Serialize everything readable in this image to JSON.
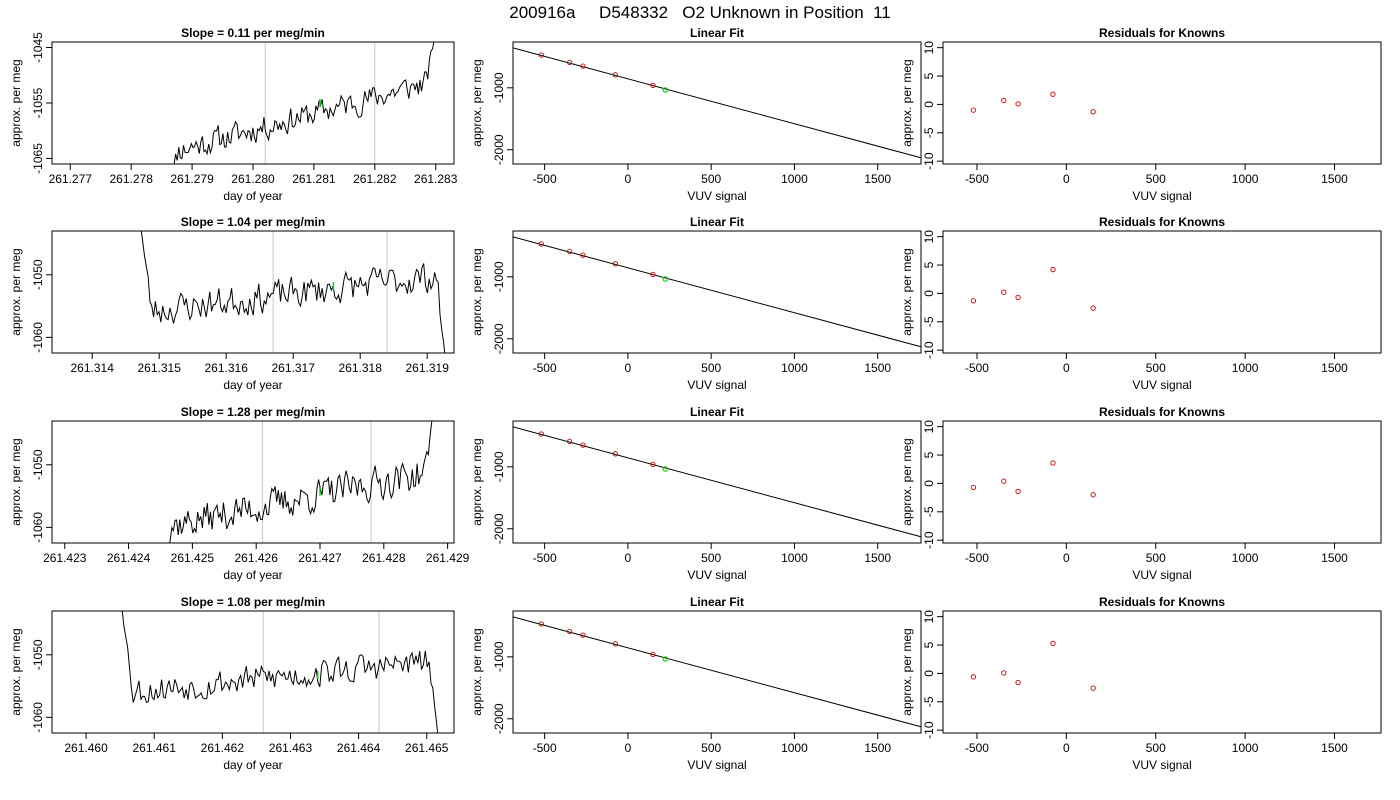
{
  "title": "200916a     D548332   O2 Unknown in Position  11",
  "colors": {
    "trace": "#000000",
    "marker": "#00dd00",
    "known_points": "#cc0000",
    "guides": "#c8c8c8",
    "fit_line": "#000000"
  },
  "chart_data": [
    {
      "type": "line",
      "title": "Slope =  0.11  per meg/min",
      "xlabel": "day of year",
      "ylabel": "approx. per meg",
      "xlim": [
        261.2767,
        261.2833
      ],
      "ylim": [
        -1066,
        -1044
      ],
      "xticks": [
        261.277,
        261.278,
        261.279,
        261.28,
        261.281,
        261.282,
        261.283
      ],
      "xtick_labels": [
        "261.277",
        "261.278",
        "261.279",
        "261.280",
        "261.281",
        "261.282",
        "261.283"
      ],
      "yticks": [
        -1045,
        -1055,
        -1065
      ],
      "ytick_labels": [
        "-1045",
        "-1055",
        "-1065"
      ],
      "vlines": [
        261.2802,
        261.282
      ],
      "marker": {
        "x": 261.2811,
        "y": -1055
      },
      "trace": {
        "start": 261.2786,
        "end": 261.283,
        "base_start": -1064,
        "base_end": -1051,
        "noise": 1.5,
        "spike_start": -1070,
        "spike_end": -1042,
        "seed": 11
      }
    },
    {
      "type": "scatter",
      "title": "Linear Fit",
      "xlabel": "VUV signal",
      "ylabel": "approx. per meg",
      "xlim": [
        -690,
        1760
      ],
      "ylim": [
        -2230,
        -260
      ],
      "xticks": [
        -500,
        0,
        500,
        1000,
        1500
      ],
      "xtick_labels": [
        "-500",
        "0",
        "500",
        "1000",
        "1500"
      ],
      "yticks": [
        -1000,
        -2000
      ],
      "ytick_labels": [
        "-1000",
        "-2000"
      ],
      "fit_line": {
        "x": [
          -690,
          1760
        ],
        "y": [
          -355,
          -2130
        ]
      },
      "knowns": {
        "x": [
          -520,
          -350,
          -270,
          -75,
          150
        ],
        "y": [
          -470,
          -590,
          -650,
          -790,
          -960
        ]
      },
      "unknown": {
        "x": 225,
        "y": -1035
      }
    },
    {
      "type": "scatter",
      "title": "Residuals for Knowns",
      "xlabel": "VUV signal",
      "ylabel": "approx. per meg",
      "xlim": [
        -690,
        1760
      ],
      "ylim": [
        -10.5,
        11
      ],
      "xticks": [
        -500,
        0,
        500,
        1000,
        1500
      ],
      "xtick_labels": [
        "-500",
        "0",
        "500",
        "1000",
        "1500"
      ],
      "yticks": [
        10,
        5,
        0,
        -5,
        -10
      ],
      "ytick_labels": [
        "10",
        "5",
        "0",
        "-5",
        "-10"
      ],
      "residuals": {
        "x": [
          -520,
          -350,
          -270,
          -75,
          150
        ],
        "y": [
          -1.0,
          0.7,
          0.1,
          1.8,
          -1.3
        ]
      }
    },
    {
      "type": "line",
      "title": "Slope =  1.04  per meg/min",
      "xlabel": "day of year",
      "ylabel": "approx. per meg",
      "xlim": [
        261.3134,
        261.3194
      ],
      "ylim": [
        -1062.5,
        -1043
      ],
      "xticks": [
        261.314,
        261.315,
        261.316,
        261.317,
        261.318,
        261.319
      ],
      "xtick_labels": [
        "261.314",
        "261.315",
        "261.316",
        "261.317",
        "261.318",
        "261.319"
      ],
      "yticks": [
        -1050,
        -1060
      ],
      "ytick_labels": [
        "-1050",
        "-1060"
      ],
      "vlines": [
        261.3167,
        261.3184
      ],
      "marker": {
        "x": 261.3176,
        "y": -1051.8
      },
      "trace": {
        "start": 261.3147,
        "end": 261.3193,
        "base_start": -1056,
        "base_end": -1050,
        "noise": 1.6,
        "spike_start": -1040,
        "spike_end": -1067,
        "seed": 23
      }
    },
    {
      "type": "scatter",
      "title": "Linear Fit",
      "xlabel": "VUV signal",
      "ylabel": "approx. per meg",
      "xlim": [
        -690,
        1760
      ],
      "ylim": [
        -2230,
        -260
      ],
      "xticks": [
        -500,
        0,
        500,
        1000,
        1500
      ],
      "xtick_labels": [
        "-500",
        "0",
        "500",
        "1000",
        "1500"
      ],
      "yticks": [
        -1000,
        -2000
      ],
      "ytick_labels": [
        "-1000",
        "-2000"
      ],
      "fit_line": {
        "x": [
          -690,
          1760
        ],
        "y": [
          -355,
          -2130
        ]
      },
      "knowns": {
        "x": [
          -520,
          -350,
          -270,
          -75,
          150
        ],
        "y": [
          -470,
          -590,
          -650,
          -790,
          -960
        ]
      },
      "unknown": {
        "x": 225,
        "y": -1035
      }
    },
    {
      "type": "scatter",
      "title": "Residuals for Knowns",
      "xlabel": "VUV signal",
      "ylabel": "approx. per meg",
      "xlim": [
        -690,
        1760
      ],
      "ylim": [
        -10.5,
        11
      ],
      "xticks": [
        -500,
        0,
        500,
        1000,
        1500
      ],
      "xtick_labels": [
        "-500",
        "0",
        "500",
        "1000",
        "1500"
      ],
      "yticks": [
        10,
        5,
        0,
        -5,
        -10
      ],
      "ytick_labels": [
        "10",
        "5",
        "0",
        "-5",
        "-10"
      ],
      "residuals": {
        "x": [
          -520,
          -350,
          -270,
          -75,
          150
        ],
        "y": [
          -1.3,
          0.2,
          -0.7,
          4.2,
          -2.6
        ]
      }
    },
    {
      "type": "line",
      "title": "Slope =  1.28  per meg/min",
      "xlabel": "day of year",
      "ylabel": "approx. per meg",
      "xlim": [
        261.4228,
        261.4291
      ],
      "ylim": [
        -1062.5,
        -1043
      ],
      "xticks": [
        261.423,
        261.424,
        261.425,
        261.426,
        261.427,
        261.428,
        261.429
      ],
      "xtick_labels": [
        "261.423",
        "261.424",
        "261.425",
        "261.426",
        "261.427",
        "261.428",
        "261.429"
      ],
      "yticks": [
        -1050,
        -1060
      ],
      "ytick_labels": [
        "-1050",
        "-1060"
      ],
      "vlines": [
        261.4261,
        261.4278
      ],
      "marker": {
        "x": 261.427,
        "y": -1054.3
      },
      "trace": {
        "start": 261.4245,
        "end": 261.4288,
        "base_start": -1060,
        "base_end": -1051,
        "noise": 1.7,
        "spike_start": -1067,
        "spike_end": -1040,
        "seed": 37
      }
    },
    {
      "type": "scatter",
      "title": "Linear Fit",
      "xlabel": "VUV signal",
      "ylabel": "approx. per meg",
      "xlim": [
        -690,
        1760
      ],
      "ylim": [
        -2230,
        -260
      ],
      "xticks": [
        -500,
        0,
        500,
        1000,
        1500
      ],
      "xtick_labels": [
        "-500",
        "0",
        "500",
        "1000",
        "1500"
      ],
      "yticks": [
        -1000,
        -2000
      ],
      "ytick_labels": [
        "-1000",
        "-2000"
      ],
      "fit_line": {
        "x": [
          -690,
          1760
        ],
        "y": [
          -355,
          -2130
        ]
      },
      "knowns": {
        "x": [
          -520,
          -350,
          -270,
          -75,
          150
        ],
        "y": [
          -470,
          -590,
          -650,
          -790,
          -960
        ]
      },
      "unknown": {
        "x": 225,
        "y": -1035
      }
    },
    {
      "type": "scatter",
      "title": "Residuals for Knowns",
      "xlabel": "VUV signal",
      "ylabel": "approx. per meg",
      "xlim": [
        -690,
        1760
      ],
      "ylim": [
        -10.5,
        11
      ],
      "xticks": [
        -500,
        0,
        500,
        1000,
        1500
      ],
      "xtick_labels": [
        "-500",
        "0",
        "500",
        "1000",
        "1500"
      ],
      "yticks": [
        10,
        5,
        0,
        -5,
        -10
      ],
      "ytick_labels": [
        "10",
        "5",
        "0",
        "-5",
        "-10"
      ],
      "residuals": {
        "x": [
          -520,
          -350,
          -270,
          -75,
          150
        ],
        "y": [
          -0.7,
          0.4,
          -1.4,
          3.6,
          -2.0
        ]
      }
    },
    {
      "type": "line",
      "title": "Slope =  1.08  per meg/min",
      "xlabel": "day of year",
      "ylabel": "approx. per meg",
      "xlim": [
        261.4595,
        261.4654
      ],
      "ylim": [
        -1062.5,
        -1043
      ],
      "xticks": [
        261.46,
        261.461,
        261.462,
        261.463,
        261.464,
        261.465
      ],
      "xtick_labels": [
        "261.460",
        "261.461",
        "261.462",
        "261.463",
        "261.464",
        "261.465"
      ],
      "yticks": [
        -1050,
        -1060
      ],
      "ytick_labels": [
        "-1050",
        "-1060"
      ],
      "vlines": [
        261.4626,
        261.4643
      ],
      "marker": {
        "x": 261.4634,
        "y": -1053.2
      },
      "trace": {
        "start": 261.4605,
        "end": 261.4652,
        "base_start": -1056,
        "base_end": -1051,
        "noise": 1.5,
        "spike_start": -1040,
        "spike_end": -1067,
        "seed": 53
      }
    },
    {
      "type": "scatter",
      "title": "Linear Fit",
      "xlabel": "VUV signal",
      "ylabel": "approx. per meg",
      "xlim": [
        -690,
        1760
      ],
      "ylim": [
        -2230,
        -260
      ],
      "xticks": [
        -500,
        0,
        500,
        1000,
        1500
      ],
      "xtick_labels": [
        "-500",
        "0",
        "500",
        "1000",
        "1500"
      ],
      "yticks": [
        -1000,
        -2000
      ],
      "ytick_labels": [
        "-1000",
        "-2000"
      ],
      "fit_line": {
        "x": [
          -690,
          1760
        ],
        "y": [
          -355,
          -2130
        ]
      },
      "knowns": {
        "x": [
          -520,
          -350,
          -270,
          -75,
          150
        ],
        "y": [
          -470,
          -590,
          -650,
          -790,
          -960
        ]
      },
      "unknown": {
        "x": 225,
        "y": -1035
      }
    },
    {
      "type": "scatter",
      "title": "Residuals for Knowns",
      "xlabel": "VUV signal",
      "ylabel": "approx. per meg",
      "xlim": [
        -690,
        1760
      ],
      "ylim": [
        -10.5,
        11
      ],
      "xticks": [
        -500,
        0,
        500,
        1000,
        1500
      ],
      "xtick_labels": [
        "-500",
        "0",
        "500",
        "1000",
        "1500"
      ],
      "yticks": [
        10,
        5,
        0,
        -5,
        -10
      ],
      "residuals": {
        "x": [
          -520,
          -350,
          -270,
          -75,
          150
        ],
        "y": [
          -0.6,
          0.1,
          -1.6,
          5.3,
          -2.6
        ]
      },
      "ytick_labels": [
        "10",
        "5",
        "0",
        "-5",
        "-10"
      ]
    }
  ]
}
